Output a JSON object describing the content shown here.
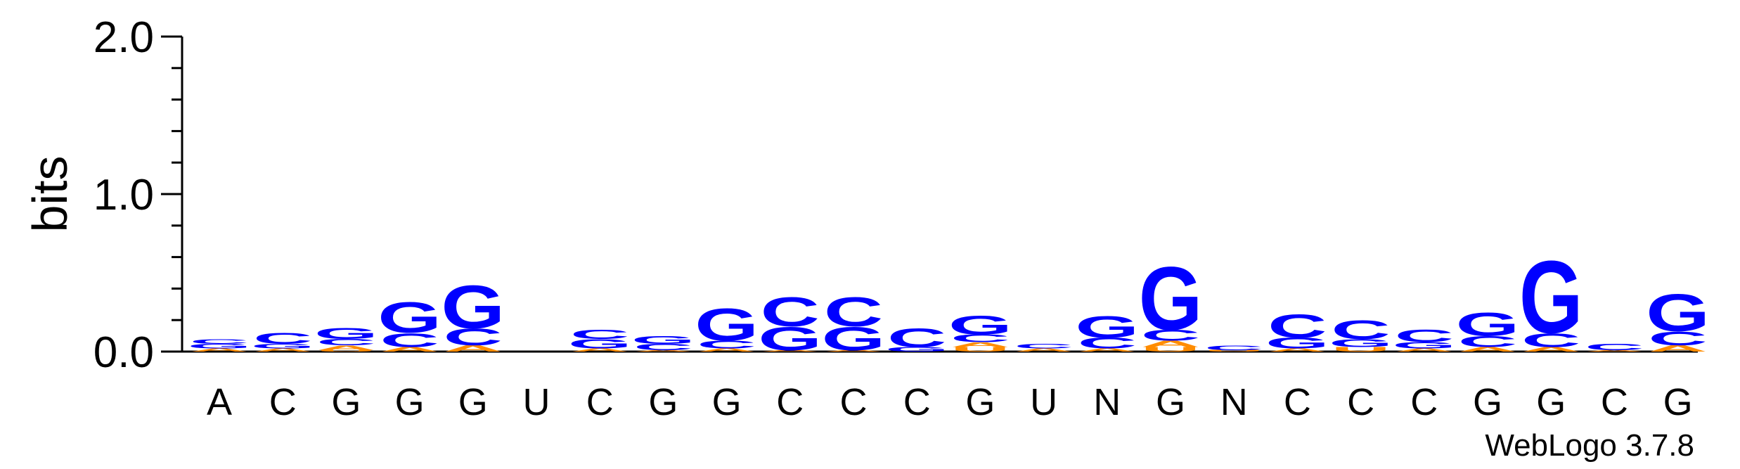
{
  "chart_data": {
    "type": "sequence-logo",
    "ylabel": "bits",
    "ylim": [
      0,
      2.0
    ],
    "yticks": [
      "0.0",
      "1.0",
      "2.0"
    ],
    "positions": [
      "A",
      "C",
      "G",
      "G",
      "G",
      "U",
      "C",
      "G",
      "G",
      "C",
      "C",
      "C",
      "G",
      "U",
      "N",
      "G",
      "N",
      "C",
      "C",
      "C",
      "G",
      "G",
      "C",
      "G"
    ],
    "colors": {
      "A": "#ff8c00",
      "C": "#0000ff",
      "G": "#0000ff",
      "U": "#ff8c00"
    },
    "stacks": [
      [
        {
          "l": "A",
          "h": 0.02
        },
        {
          "l": "G",
          "h": 0.03
        },
        {
          "l": "C",
          "h": 0.03
        }
      ],
      [
        {
          "l": "A",
          "h": 0.02
        },
        {
          "l": "G",
          "h": 0.03
        },
        {
          "l": "C",
          "h": 0.07
        }
      ],
      [
        {
          "l": "U",
          "h": 0.01
        },
        {
          "l": "A",
          "h": 0.03
        },
        {
          "l": "C",
          "h": 0.04
        },
        {
          "l": "G",
          "h": 0.07
        }
      ],
      [
        {
          "l": "A",
          "h": 0.03
        },
        {
          "l": "C",
          "h": 0.09
        },
        {
          "l": "G",
          "h": 0.2
        }
      ],
      [
        {
          "l": "A",
          "h": 0.04
        },
        {
          "l": "C",
          "h": 0.11
        },
        {
          "l": "G",
          "h": 0.28
        }
      ],
      [],
      [
        {
          "l": "A",
          "h": 0.02
        },
        {
          "l": "G",
          "h": 0.06
        },
        {
          "l": "C",
          "h": 0.06
        }
      ],
      [
        {
          "l": "A",
          "h": 0.01
        },
        {
          "l": "C",
          "h": 0.04
        },
        {
          "l": "G",
          "h": 0.05
        }
      ],
      [
        {
          "l": "A",
          "h": 0.02
        },
        {
          "l": "C",
          "h": 0.05
        },
        {
          "l": "G",
          "h": 0.21
        }
      ],
      [
        {
          "l": "A",
          "h": 0.01
        },
        {
          "l": "G",
          "h": 0.15
        },
        {
          "l": "C",
          "h": 0.19
        }
      ],
      [
        {
          "l": "A",
          "h": 0.01
        },
        {
          "l": "G",
          "h": 0.15
        },
        {
          "l": "C",
          "h": 0.19
        }
      ],
      [
        {
          "l": "G",
          "h": 0.03
        },
        {
          "l": "C",
          "h": 0.12
        }
      ],
      [
        {
          "l": "U",
          "h": 0.03
        },
        {
          "l": "A",
          "h": 0.03
        },
        {
          "l": "C",
          "h": 0.05
        },
        {
          "l": "G",
          "h": 0.12
        }
      ],
      [
        {
          "l": "A",
          "h": 0.02
        },
        {
          "l": "C",
          "h": 0.03
        }
      ],
      [
        {
          "l": "A",
          "h": 0.02
        },
        {
          "l": "C",
          "h": 0.07
        },
        {
          "l": "G",
          "h": 0.14
        }
      ],
      [
        {
          "l": "U",
          "h": 0.03
        },
        {
          "l": "A",
          "h": 0.04
        },
        {
          "l": "C",
          "h": 0.07
        },
        {
          "l": "G",
          "h": 0.41
        }
      ],
      [
        {
          "l": "U",
          "h": 0.01
        },
        {
          "l": "C",
          "h": 0.03
        }
      ],
      [
        {
          "l": "A",
          "h": 0.02
        },
        {
          "l": "G",
          "h": 0.07
        },
        {
          "l": "C",
          "h": 0.15
        }
      ],
      [
        {
          "l": "U",
          "h": 0.03
        },
        {
          "l": "G",
          "h": 0.05
        },
        {
          "l": "C",
          "h": 0.12
        }
      ],
      [
        {
          "l": "A",
          "h": 0.02
        },
        {
          "l": "G",
          "h": 0.04
        },
        {
          "l": "C",
          "h": 0.08
        }
      ],
      [
        {
          "l": "A",
          "h": 0.03
        },
        {
          "l": "C",
          "h": 0.07
        },
        {
          "l": "G",
          "h": 0.15
        }
      ],
      [
        {
          "l": "A",
          "h": 0.03
        },
        {
          "l": "C",
          "h": 0.09
        },
        {
          "l": "G",
          "h": 0.47
        }
      ],
      [
        {
          "l": "A",
          "h": 0.01
        },
        {
          "l": "C",
          "h": 0.04
        }
      ],
      [
        {
          "l": "A",
          "h": 0.04
        },
        {
          "l": "C",
          "h": 0.09
        },
        {
          "l": "G",
          "h": 0.24
        }
      ]
    ]
  },
  "footer": {
    "label": "WebLogo 3.7.8"
  }
}
